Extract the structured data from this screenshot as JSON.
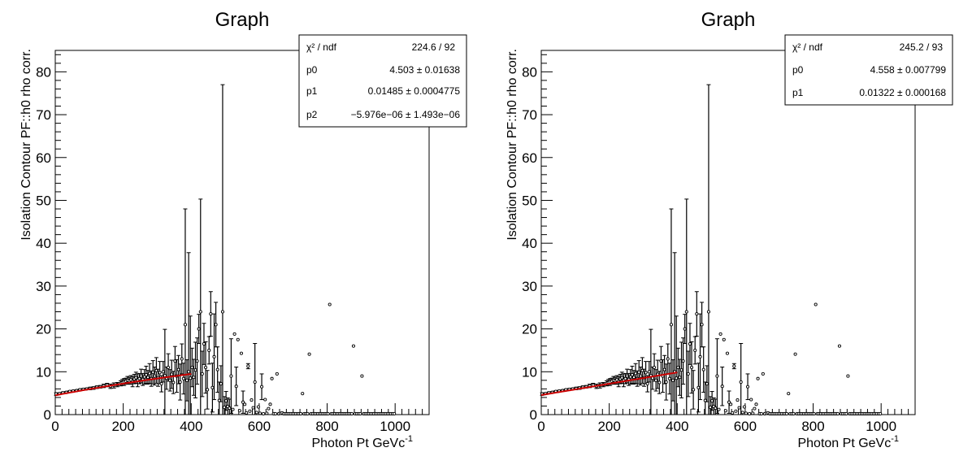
{
  "chart_data": [
    {
      "type": "scatter",
      "title": "Graph",
      "xlabel": "Photon Pt GeVc",
      "xlabel_sup": "-1",
      "ylabel": "Isolation Contour PF::h0 rho corr.",
      "xlim": [
        0,
        1100
      ],
      "ylim": [
        0,
        85
      ],
      "xticks": [
        "0",
        "200",
        "400",
        "600",
        "800",
        "1000"
      ],
      "yticks": [
        "0",
        "10",
        "20",
        "30",
        "40",
        "50",
        "60",
        "70",
        "80"
      ],
      "stats": {
        "header": {
          "name": "χ² / ndf",
          "value": "224.6 / 92"
        },
        "rows": [
          {
            "name": "p0",
            "value": "4.503 ± 0.01638"
          },
          {
            "name": "p1",
            "value": "0.01485 ± 0.0004775"
          },
          {
            "name": "p2",
            "value": "−5.976e−06 ± 1.493e−06"
          }
        ]
      },
      "fit": {
        "p": [
          4.503,
          0.01485,
          -5.976e-06
        ],
        "x_range": [
          0,
          400
        ],
        "color": "#cc0000"
      }
    },
    {
      "type": "scatter",
      "title": "Graph",
      "xlabel": "Photon Pt GeVc",
      "xlabel_sup": "-1",
      "ylabel": "Isolation Contour PF::h0 rho corr.",
      "xlim": [
        0,
        1100
      ],
      "ylim": [
        0,
        85
      ],
      "xticks": [
        "0",
        "200",
        "400",
        "600",
        "800",
        "1000"
      ],
      "yticks": [
        "0",
        "10",
        "20",
        "30",
        "40",
        "50",
        "60",
        "70",
        "80"
      ],
      "stats": {
        "header": {
          "name": "χ² / ndf",
          "value": "245.2 / 93"
        },
        "rows": [
          {
            "name": "p0",
            "value": "4.558 ± 0.007799"
          },
          {
            "name": "p1",
            "value": "0.01322 ± 0.000168"
          }
        ]
      },
      "fit": {
        "p": [
          4.558,
          0.01322
        ],
        "x_range": [
          0,
          400
        ],
        "color": "#cc0000"
      }
    }
  ],
  "points": [
    [
      2.5,
      4.8,
      0.3
    ],
    [
      12.5,
      4.9,
      0.2
    ],
    [
      22.5,
      5.1,
      0.2
    ],
    [
      32.5,
      5.2,
      0.2
    ],
    [
      42.5,
      5.4,
      0.2
    ],
    [
      52.5,
      5.5,
      0.2
    ],
    [
      62.5,
      5.6,
      0.2
    ],
    [
      72.5,
      5.8,
      0.2
    ],
    [
      82.5,
      5.9,
      0.2
    ],
    [
      92.5,
      6.0,
      0.2
    ],
    [
      102.5,
      6.1,
      0.3
    ],
    [
      112.5,
      6.2,
      0.3
    ],
    [
      122.5,
      6.4,
      0.3
    ],
    [
      132.5,
      6.5,
      0.3
    ],
    [
      142.5,
      6.7,
      0.4
    ],
    [
      152.5,
      6.9,
      0.4
    ],
    [
      162.5,
      6.6,
      0.5
    ],
    [
      172.5,
      6.8,
      0.6
    ],
    [
      182.5,
      7.0,
      0.5
    ],
    [
      192.5,
      7.3,
      0.6
    ],
    [
      197.5,
      7.5,
      0.7
    ],
    [
      202.5,
      7.6,
      0.8
    ],
    [
      207.5,
      7.8,
      0.7
    ],
    [
      212.5,
      8.0,
      0.9
    ],
    [
      217.5,
      7.9,
      0.8
    ],
    [
      222.5,
      8.1,
      1.0
    ],
    [
      227.5,
      7.7,
      1.2
    ],
    [
      232.5,
      8.3,
      1.1
    ],
    [
      237.5,
      8.6,
      1.3
    ],
    [
      242.5,
      8.0,
      1.5
    ],
    [
      247.5,
      8.4,
      1.2
    ],
    [
      252.5,
      9.0,
      1.6
    ],
    [
      257.5,
      8.2,
      1.4
    ],
    [
      262.5,
      8.8,
      1.7
    ],
    [
      267.5,
      9.3,
      2.0
    ],
    [
      272.5,
      8.7,
      1.6
    ],
    [
      277.5,
      9.6,
      2.3
    ],
    [
      282.5,
      8.4,
      1.8
    ],
    [
      287.5,
      9.9,
      2.7
    ],
    [
      292.5,
      9.0,
      2.1
    ],
    [
      297.5,
      10.3,
      3.0
    ],
    [
      302.5,
      8.6,
      2.0
    ],
    [
      307.5,
      9.8,
      2.6
    ],
    [
      312.5,
      7.2,
      1.9
    ],
    [
      317.5,
      10.0,
      2.4
    ],
    [
      322.5,
      9.1,
      10.8
    ],
    [
      327.5,
      8.5,
      2.6
    ],
    [
      332.5,
      11.0,
      3.2
    ],
    [
      337.5,
      8.0,
      2.5
    ],
    [
      342.5,
      9.4,
      3.3
    ],
    [
      347.5,
      7.5,
      2.6
    ],
    [
      352.5,
      12.5,
      3.4
    ],
    [
      357.5,
      9.0,
      3.8
    ],
    [
      362.5,
      10.5,
      3.3
    ],
    [
      367.5,
      7.6,
      4.2
    ],
    [
      372.5,
      13.0,
      3.5
    ],
    [
      377.5,
      8.4,
      3.6
    ],
    [
      382.5,
      21.0,
      27.0
    ],
    [
      387.5,
      8.0,
      4.8
    ],
    [
      392.5,
      10.0,
      27.8
    ],
    [
      397.5,
      8.5,
      14.5
    ],
    [
      402.5,
      11.0,
      4.5
    ],
    [
      407.5,
      8.7,
      4.2
    ],
    [
      412.5,
      10.4,
      6.5
    ],
    [
      417.5,
      12.5,
      5.4
    ],
    [
      422.5,
      20.0,
      3.4
    ],
    [
      427.5,
      24.0,
      26.3
    ],
    [
      432.5,
      9.5,
      5.3
    ],
    [
      437.5,
      16.5,
      4.8
    ],
    [
      442.5,
      11.0,
      6.0
    ],
    [
      447.5,
      5.8,
      4.5
    ],
    [
      452.5,
      15.0,
      3.2
    ],
    [
      457.5,
      23.5,
      5.2
    ],
    [
      462.5,
      6.3,
      5.7
    ],
    [
      467.5,
      13.5,
      10.0
    ],
    [
      472.5,
      21.0,
      5.2
    ],
    [
      477.5,
      10.5,
      5.3
    ],
    [
      482.5,
      3.3,
      4.3
    ],
    [
      487.5,
      7.2,
      4.2
    ],
    [
      492.5,
      24.0,
      53.0
    ],
    [
      497.5,
      1.7,
      2.5
    ],
    [
      502.5,
      3.2,
      2.2
    ],
    [
      507.5,
      1.9,
      2.0
    ],
    [
      512.5,
      1.5,
      2.1
    ],
    [
      517.5,
      9.0,
      8.7
    ],
    [
      522.5,
      1.2,
      0
    ],
    [
      527.5,
      18.8,
      0
    ],
    [
      532.5,
      6.6,
      4.5
    ],
    [
      537.5,
      17.5,
      0
    ],
    [
      542.5,
      0.9,
      0
    ],
    [
      547.5,
      14.3,
      0
    ],
    [
      552.5,
      2.9,
      2.6
    ],
    [
      557.5,
      2.4,
      0
    ],
    [
      562.5,
      0.4,
      0
    ],
    [
      567.5,
      11.3,
      0.6
    ],
    [
      572.5,
      0.8,
      0
    ],
    [
      577.5,
      3.4,
      0
    ],
    [
      582.5,
      1.6,
      0
    ],
    [
      587.5,
      7.6,
      9.0
    ],
    [
      592.5,
      0.5,
      0
    ],
    [
      597.5,
      1.8,
      0
    ],
    [
      602.5,
      0.3,
      0
    ],
    [
      607.5,
      6.5,
      3.0
    ],
    [
      612.5,
      0.2,
      0
    ],
    [
      617.5,
      3.5,
      0
    ],
    [
      622.5,
      0.3,
      0
    ],
    [
      627.5,
      1.4,
      0
    ],
    [
      632.5,
      2.4,
      0
    ],
    [
      637.5,
      8.4,
      0
    ],
    [
      642.5,
      0.2,
      0
    ],
    [
      647.5,
      0.2,
      0
    ],
    [
      652.5,
      9.5,
      0
    ],
    [
      657.5,
      0.2,
      0
    ],
    [
      662.5,
      0.3,
      0
    ],
    [
      667.5,
      0.4,
      0
    ],
    [
      672.5,
      0.2,
      0
    ],
    [
      677.5,
      0.2,
      0
    ],
    [
      682.5,
      0.2,
      0
    ],
    [
      687.5,
      0.2,
      0
    ],
    [
      692.5,
      0.2,
      0
    ],
    [
      697.5,
      0.2,
      0
    ],
    [
      702.5,
      0.2,
      0
    ],
    [
      707.5,
      0.2,
      0
    ],
    [
      712.5,
      0.2,
      0
    ],
    [
      717.5,
      0.2,
      0
    ],
    [
      722.5,
      0.2,
      0
    ],
    [
      727.5,
      4.9,
      0
    ],
    [
      732.5,
      0.2,
      0
    ],
    [
      737.5,
      0.2,
      0
    ],
    [
      742.5,
      0.2,
      0
    ],
    [
      747.5,
      14.1,
      0
    ],
    [
      752.5,
      0.2,
      0
    ],
    [
      757.5,
      0.2,
      0
    ],
    [
      762.5,
      0.2,
      0
    ],
    [
      767.5,
      0.2,
      0
    ],
    [
      772.5,
      0.2,
      0
    ],
    [
      777.5,
      0.2,
      0
    ],
    [
      782.5,
      0.2,
      0
    ],
    [
      787.5,
      0.2,
      0
    ],
    [
      792.5,
      0.2,
      0
    ],
    [
      797.5,
      0.2,
      0
    ],
    [
      802.5,
      0.2,
      0
    ],
    [
      807.5,
      25.7,
      0
    ],
    [
      812.5,
      0.2,
      0
    ],
    [
      817.5,
      0.2,
      0
    ],
    [
      822.5,
      0.2,
      0
    ],
    [
      827.5,
      0.2,
      0
    ],
    [
      832.5,
      0.2,
      0
    ],
    [
      837.5,
      0.2,
      0
    ],
    [
      842.5,
      0.2,
      0
    ],
    [
      847.5,
      0.2,
      0
    ],
    [
      852.5,
      0.2,
      0
    ],
    [
      857.5,
      0.2,
      0
    ],
    [
      862.5,
      0.2,
      0
    ],
    [
      867.5,
      0.2,
      0
    ],
    [
      872.5,
      0.2,
      0
    ],
    [
      877.5,
      16.0,
      0
    ],
    [
      882.5,
      0.2,
      0
    ],
    [
      887.5,
      0.2,
      0
    ],
    [
      892.5,
      0.2,
      0
    ],
    [
      897.5,
      0.2,
      0
    ],
    [
      902.5,
      9.0,
      0
    ],
    [
      907.5,
      0.2,
      0
    ],
    [
      912.5,
      0.2,
      0
    ],
    [
      917.5,
      0.2,
      0
    ],
    [
      922.5,
      0.2,
      0
    ],
    [
      927.5,
      0.2,
      0
    ],
    [
      932.5,
      0.2,
      0
    ],
    [
      937.5,
      0.2,
      0
    ],
    [
      942.5,
      0.2,
      0
    ],
    [
      947.5,
      0.2,
      0
    ],
    [
      952.5,
      0.2,
      0
    ],
    [
      957.5,
      0.2,
      0
    ],
    [
      962.5,
      0.2,
      0
    ],
    [
      967.5,
      0.2,
      0
    ],
    [
      972.5,
      0.2,
      0
    ],
    [
      977.5,
      0.2,
      0
    ],
    [
      982.5,
      0.2,
      0
    ],
    [
      987.5,
      0.2,
      0
    ],
    [
      992.5,
      0.2,
      0
    ],
    [
      997.5,
      0.2,
      0
    ]
  ]
}
